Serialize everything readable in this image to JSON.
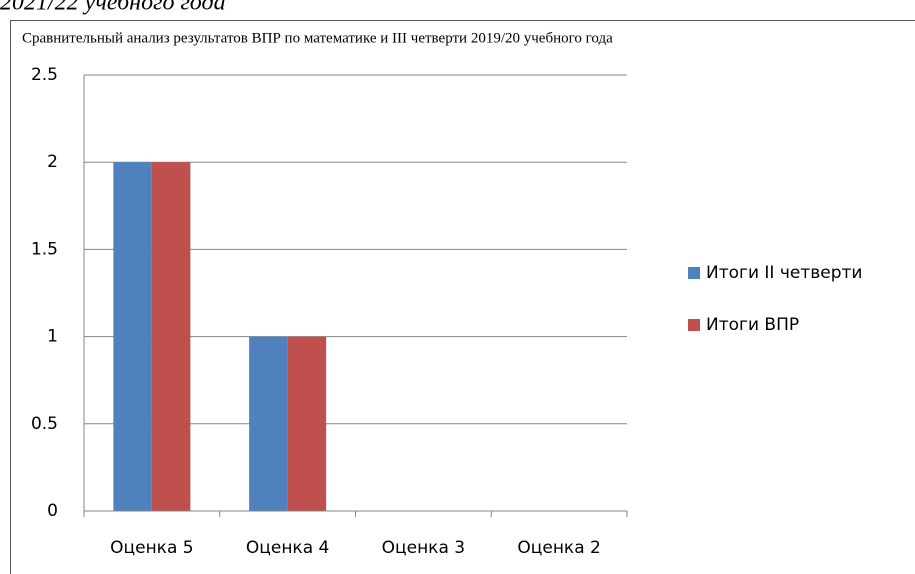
{
  "page_caption": "2021/22 учебного года",
  "chart_data": {
    "type": "bar",
    "title": "Сравнительный анализ результатов ВПР по математике и III четверти 2019/20 учебного года",
    "categories": [
      "Оценка 5",
      "Оценка 4",
      "Оценка 3",
      "Оценка 2"
    ],
    "series": [
      {
        "name": "Итоги II четверти",
        "color": "#4f81bd",
        "values": [
          2,
          1,
          0,
          0
        ]
      },
      {
        "name": "Итоги ВПР",
        "color": "#c0504d",
        "values": [
          2,
          1,
          0,
          0
        ]
      }
    ],
    "ylim": [
      0,
      2.5
    ],
    "yticks": [
      0,
      0.5,
      1,
      1.5,
      2,
      2.5
    ],
    "grid": true,
    "legend": "right"
  }
}
